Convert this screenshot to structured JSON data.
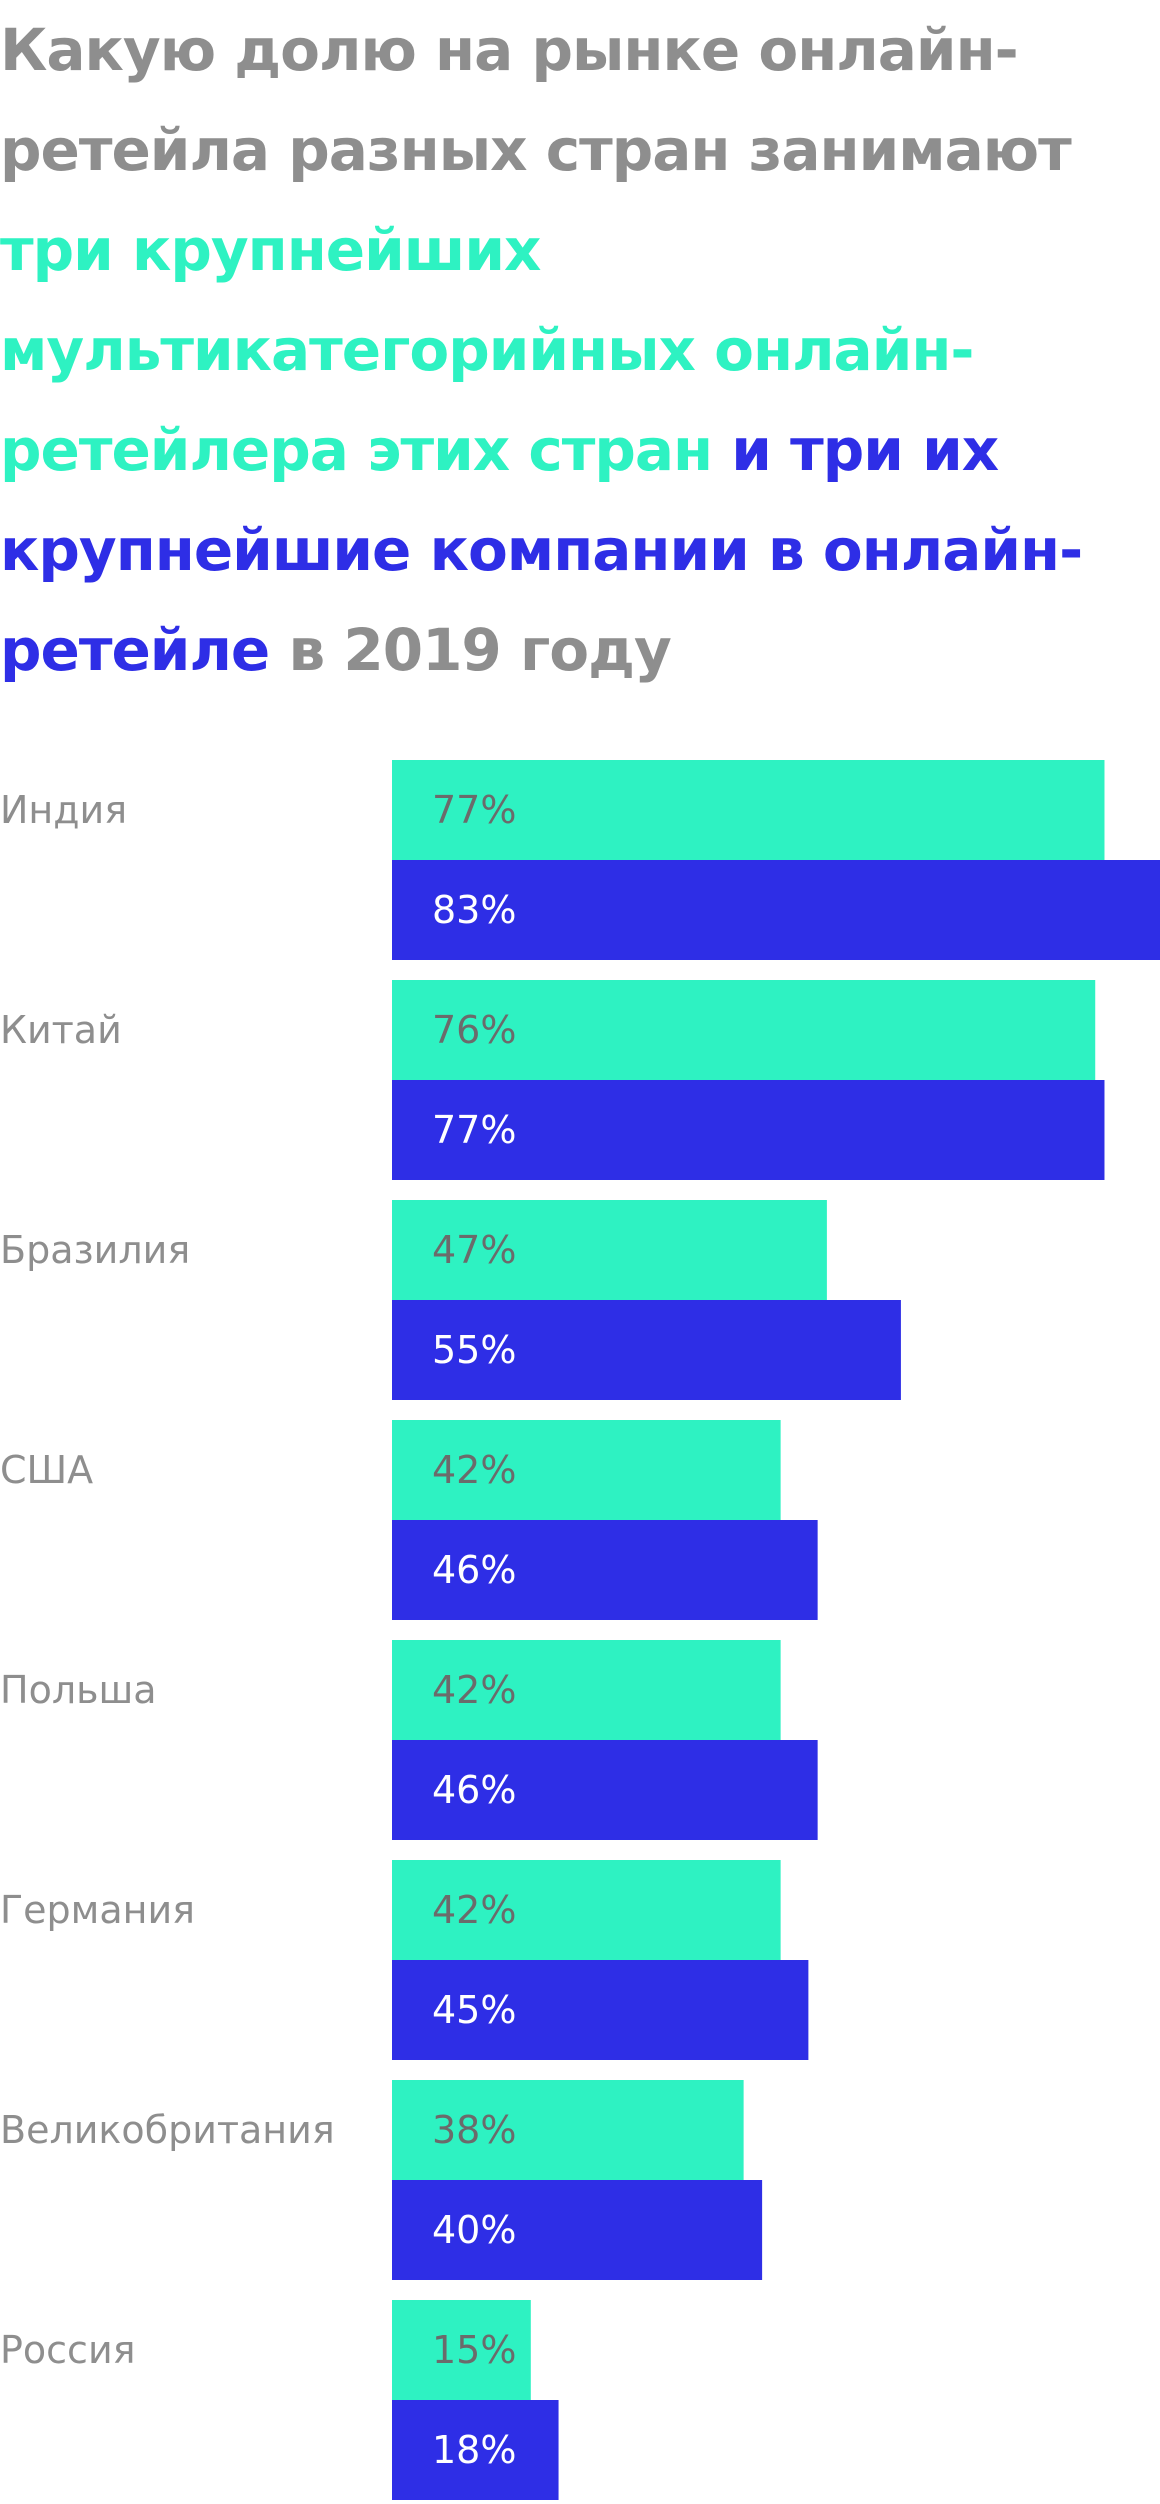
{
  "title_parts": {
    "p1": "Какую долю на рынке онлайн-ретейла разных стран занимают ",
    "p2": "три крупнейших мультикатегорийных онлайн-ретейлера этих стран",
    "p3": " ",
    "p4": "и три их крупнейшие компании в онлайн-ретейле",
    "p5": " в 2019 году"
  },
  "colors": {
    "title_gray": "#8e8e8e",
    "series_a": "#2ef2c2",
    "series_b": "#2e2ee6",
    "label_on_a": "#6b6b6b",
    "label_on_b": "#ffffff"
  },
  "chart_data": {
    "type": "bar",
    "orientation": "horizontal",
    "categories": [
      "Индия",
      "Китай",
      "Бразилия",
      "США",
      "Польша",
      "Германия",
      "Великобритания",
      "Россия"
    ],
    "series": [
      {
        "values": [
          77,
          76,
          47,
          42,
          42,
          42,
          38,
          15
        ],
        "labels": [
          "77%",
          "76%",
          "47%",
          "42%",
          "42%",
          "42%",
          "38%",
          "15%"
        ]
      },
      {
        "values": [
          83,
          77,
          55,
          46,
          46,
          45,
          40,
          18
        ],
        "labels": [
          "83%",
          "77%",
          "55%",
          "46%",
          "46%",
          "45%",
          "40%",
          "18%"
        ]
      }
    ],
    "xlim": [
      0,
      83
    ],
    "grid": false,
    "legend": "none"
  }
}
